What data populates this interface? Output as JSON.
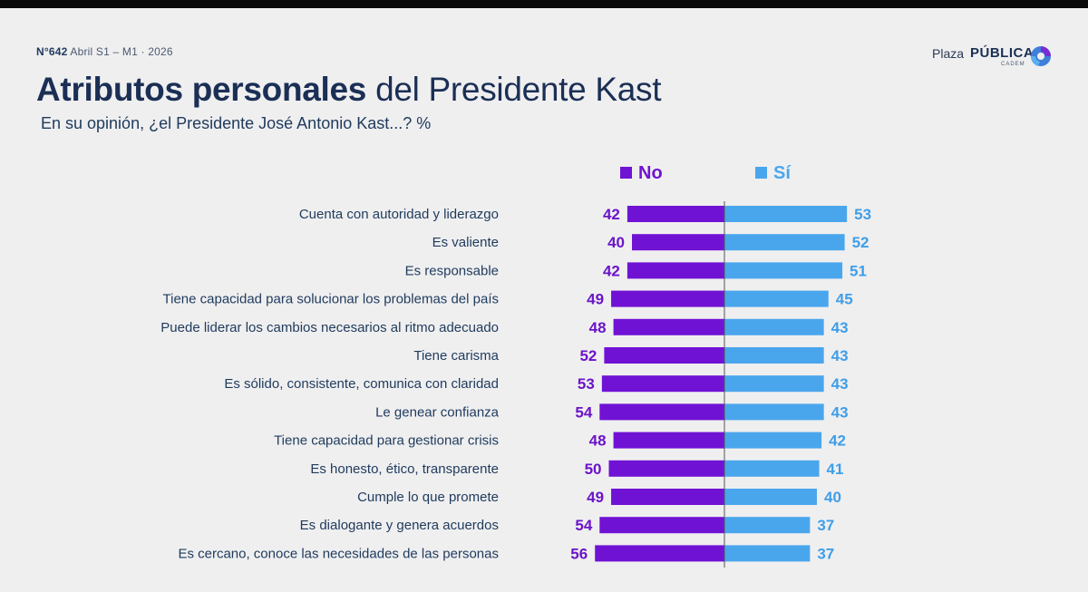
{
  "header": {
    "issue": "N°642",
    "period": "Abril S1 – M1 · 2026",
    "title_bold": "Atributos personales",
    "title_rest": "del Presidente Kast",
    "subtitle": "En su opinión, ¿el Presidente José Antonio Kast...? %"
  },
  "logo": {
    "plaza": "Plaza",
    "publica": "PÚBLICA",
    "cadem": "CADEM"
  },
  "colors": {
    "no": "#7012d4",
    "si": "#4aa6ec",
    "text": "#1f3a5c"
  },
  "chart_data": {
    "type": "bar",
    "orientation": "horizontal-diverging",
    "categories": [
      "Cuenta con autoridad y liderazgo",
      "Es valiente",
      "Es responsable",
      "Tiene capacidad para solucionar los problemas del país",
      "Puede liderar los cambios necesarios al ritmo adecuado",
      "Tiene carisma",
      "Es sólido, consistente, comunica con claridad",
      "Le genear confianza",
      "Tiene capacidad para gestionar crisis",
      "Es honesto, ético, transparente",
      "Cumple lo que promete",
      "Es dialogante y genera acuerdos",
      "Es cercano, conoce las necesidades de las personas"
    ],
    "series": [
      {
        "name": "No",
        "values": [
          42,
          40,
          42,
          49,
          48,
          52,
          53,
          54,
          48,
          50,
          49,
          54,
          56
        ]
      },
      {
        "name": "Sí",
        "values": [
          53,
          52,
          51,
          45,
          43,
          43,
          43,
          43,
          42,
          41,
          40,
          37,
          37
        ]
      }
    ],
    "legend_position": "top",
    "grid": false
  }
}
